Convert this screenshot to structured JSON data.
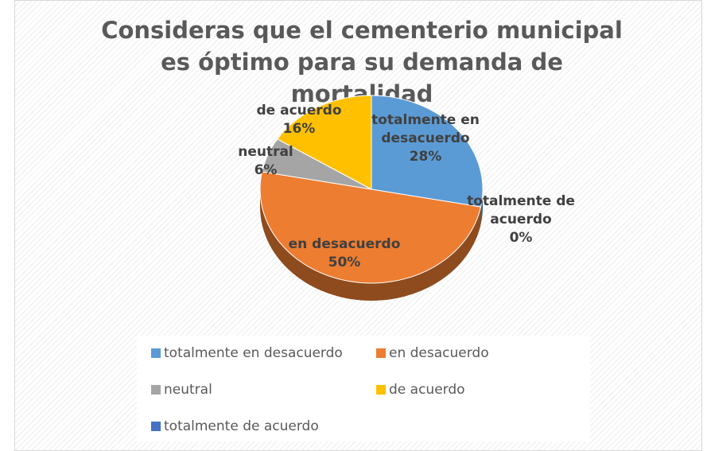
{
  "chart_data": {
    "type": "pie",
    "title": "Consideras que el cementerio municipal es óptimo para su demanda de mortalidad",
    "categories": [
      "totalmente en desacuerdo",
      "en desacuerdo",
      "neutral",
      "de acuerdo",
      "totalmente de acuerdo"
    ],
    "values": [
      28,
      50,
      6,
      16,
      0
    ],
    "value_labels": [
      "28%",
      "50%",
      "6%",
      "16%",
      "0%"
    ],
    "colors": [
      "#5b9bd5",
      "#ed7d31",
      "#a5a5a5",
      "#ffc000",
      "#4472c4"
    ],
    "legend": "bottom"
  }
}
